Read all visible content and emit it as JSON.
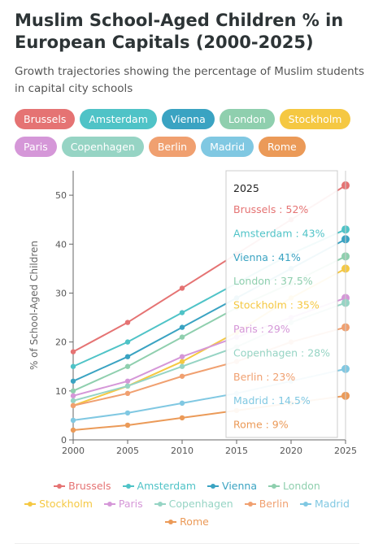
{
  "header": {
    "title": "Muslim School-Aged Children % in European Capitals (2000-2025)",
    "subtitle": "Growth trajectories showing the percentage of Muslim students in capital city schools"
  },
  "chart_data": {
    "type": "line",
    "x": [
      2000,
      2005,
      2010,
      2015,
      2020,
      2025
    ],
    "xlim": [
      2000,
      2025
    ],
    "ylim": [
      0,
      55
    ],
    "yticks": [
      0,
      10,
      20,
      30,
      40,
      50
    ],
    "ylabel": "% of School-Aged Children",
    "xlabel": "",
    "grid": false,
    "legend_position": "bottom",
    "series": [
      {
        "name": "Brussels",
        "color": "#e57373",
        "values": [
          18,
          24,
          31,
          38,
          45,
          52
        ]
      },
      {
        "name": "Amsterdam",
        "color": "#4fc3c7",
        "values": [
          15,
          20,
          26,
          32,
          38,
          43
        ]
      },
      {
        "name": "Vienna",
        "color": "#3aa3c2",
        "values": [
          12,
          17,
          23,
          29,
          35,
          41
        ]
      },
      {
        "name": "London",
        "color": "#8fcfae",
        "values": [
          10,
          15,
          21,
          27,
          32,
          37.5
        ]
      },
      {
        "name": "Stockholm",
        "color": "#f5c842",
        "values": [
          7,
          11,
          16,
          22,
          29,
          35
        ]
      },
      {
        "name": "Paris",
        "color": "#d597d8",
        "values": [
          9,
          12,
          17,
          21,
          25,
          29
        ]
      },
      {
        "name": "Copenhagen",
        "color": "#96d4c4",
        "values": [
          8,
          11,
          15,
          19,
          24,
          28
        ]
      },
      {
        "name": "Berlin",
        "color": "#f0a070",
        "values": [
          7,
          9.5,
          13,
          16,
          20,
          23
        ]
      },
      {
        "name": "Madrid",
        "color": "#80c8e2",
        "values": [
          4,
          5.5,
          7.5,
          9.5,
          12,
          14.5
        ]
      },
      {
        "name": "Rome",
        "color": "#eb9a58",
        "values": [
          2,
          3,
          4.5,
          6,
          7.5,
          9
        ]
      }
    ],
    "tooltip": {
      "title": "2025",
      "lines": [
        "Brussels : 52%",
        "Amsterdam : 43%",
        "Vienna : 41%",
        "London : 37.5%",
        "Stockholm : 35%",
        "Paris : 29%",
        "Copenhagen : 28%",
        "Berlin : 23%",
        "Madrid : 14.5%",
        "Rome : 9%"
      ]
    }
  }
}
